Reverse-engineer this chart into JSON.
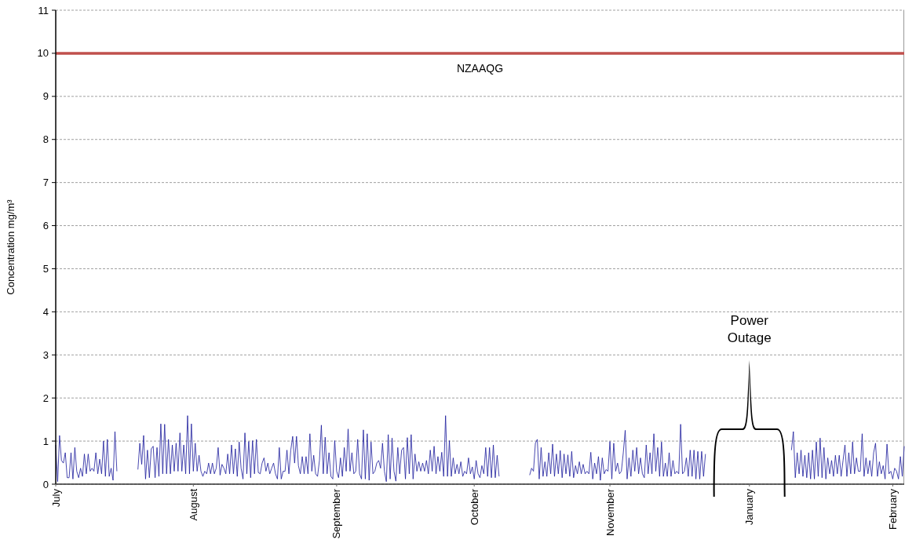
{
  "chart_data": {
    "type": "line",
    "ylabel": "Concentration mg/m³",
    "categories": [
      "July",
      null,
      null,
      null,
      null,
      null,
      null,
      null,
      null,
      null,
      null,
      null,
      null,
      null,
      null,
      null,
      null,
      null,
      null,
      null,
      null,
      null,
      null,
      null,
      null,
      null,
      null,
      null,
      null,
      null,
      null,
      null,
      null,
      null,
      null,
      null,
      null,
      null,
      null,
      null,
      null,
      null,
      null,
      null,
      null,
      null,
      null,
      null,
      null,
      null,
      null,
      null,
      null,
      null,
      null,
      null,
      null,
      null,
      null,
      null,
      null,
      null,
      null,
      null,
      null,
      null,
      null,
      null,
      null,
      null,
      null,
      null,
      "August",
      null,
      null,
      null,
      null,
      null,
      null,
      null,
      null,
      null,
      null,
      null,
      null,
      null,
      null,
      null,
      null,
      null,
      null,
      null,
      null,
      null,
      null,
      null,
      null,
      null,
      null,
      null,
      null,
      null,
      null,
      null,
      null,
      null,
      null,
      null,
      null,
      null,
      null,
      null,
      null,
      null,
      null,
      null,
      null,
      null,
      null,
      null,
      null,
      null,
      null,
      null,
      null,
      null,
      null,
      null,
      null,
      null,
      null,
      null,
      null,
      null,
      null,
      null,
      null,
      null,
      null,
      null,
      null,
      null,
      null,
      null,
      null,
      null,
      null,
      "September",
      null,
      null,
      null,
      null,
      null,
      null,
      null,
      null,
      null,
      null,
      null,
      null,
      null,
      null,
      null,
      null,
      null,
      null,
      null,
      null,
      null,
      null,
      null,
      null,
      null,
      null,
      null,
      null,
      null,
      null,
      null,
      null,
      null,
      null,
      null,
      null,
      null,
      null,
      null,
      null,
      null,
      null,
      null,
      null,
      null,
      null,
      null,
      null,
      null,
      null,
      null,
      null,
      null,
      null,
      null,
      null,
      null,
      null,
      null,
      null,
      null,
      null,
      null,
      null,
      null,
      null,
      null,
      null,
      null,
      null,
      null,
      "October",
      null,
      null,
      null,
      null,
      null,
      null,
      null,
      null,
      null,
      null,
      null,
      null,
      null,
      null,
      null,
      null,
      null,
      null,
      null,
      null,
      null,
      null,
      null,
      null,
      null,
      null,
      null,
      null,
      null,
      null,
      null,
      null,
      null,
      null,
      null,
      null,
      null,
      null,
      null,
      null,
      null,
      null,
      null,
      null,
      null,
      null,
      null,
      null,
      null,
      null,
      null,
      null,
      null,
      null,
      null,
      null,
      null,
      null,
      null,
      null,
      null,
      null,
      null,
      null,
      null,
      null,
      null,
      null,
      null,
      null,
      "November",
      null,
      null,
      null,
      null,
      null,
      null,
      null,
      null,
      null,
      null,
      null,
      null,
      null,
      null,
      null,
      null,
      null,
      null,
      null,
      null,
      null,
      null,
      null,
      null,
      null,
      null,
      null,
      null,
      null,
      null,
      null,
      null,
      null,
      null,
      null,
      null,
      null,
      null,
      null,
      null,
      null,
      null,
      null,
      null,
      null,
      null,
      null,
      null,
      null,
      null,
      null,
      null,
      null,
      null,
      null,
      null,
      null,
      null,
      null,
      null,
      null,
      null,
      null,
      null,
      null,
      null,
      null,
      null,
      null,
      null,
      null,
      null,
      "January",
      null,
      null,
      null,
      null,
      null,
      null,
      null,
      null,
      null,
      null,
      null,
      null,
      null,
      null,
      null,
      null,
      null,
      null,
      null,
      null,
      null,
      null,
      null,
      null,
      null,
      null,
      null,
      null,
      null,
      null,
      null,
      null,
      null,
      null,
      null,
      null,
      null,
      null,
      null,
      null,
      null,
      null,
      null,
      null,
      null,
      null,
      null,
      null,
      null,
      null,
      null,
      null,
      null,
      null,
      null,
      null,
      null,
      null,
      null,
      null,
      null,
      null,
      null,
      null,
      null,
      null,
      null,
      null,
      null,
      null,
      null,
      null,
      null,
      null,
      "February",
      null,
      null,
      null,
      null,
      null,
      null
    ],
    "ylim": [
      0,
      11
    ],
    "yticks": [
      0,
      1,
      2,
      3,
      4,
      5,
      6,
      7,
      8,
      9,
      10,
      11
    ],
    "grid": "y",
    "marker": "none",
    "line_style": "solid",
    "ref_lines": [
      {
        "axis": "y",
        "value": 10,
        "label": "NZAAQG",
        "color": "#c0504d"
      }
    ],
    "annotations": [
      "Power Outage"
    ],
    "series": [
      {
        "color": "#1a1a9c",
        "values": [
          0.91,
          0.06,
          1.13,
          0.55,
          0.49,
          0.73,
          0.15,
          0.15,
          0.73,
          0.12,
          0.85,
          0.3,
          0.15,
          0.37,
          0.18,
          0.7,
          0.24,
          0.7,
          0.3,
          0.37,
          0.3,
          0.73,
          0.24,
          0.58,
          0.24,
          1.0,
          0.18,
          1.04,
          0.18,
          0.37,
          0.09,
          1.22,
          0.3,
          null,
          null,
          null,
          null,
          null,
          null,
          null,
          null,
          null,
          null,
          0.34,
          0.95,
          0.46,
          1.13,
          0.12,
          0.79,
          0.15,
          0.82,
          0.88,
          0.15,
          0.85,
          0.18,
          1.4,
          0.24,
          1.39,
          0.24,
          1.04,
          0.24,
          0.91,
          0.3,
          0.95,
          0.3,
          1.19,
          0.3,
          0.91,
          0.24,
          1.59,
          0.24,
          1.4,
          0.3,
          0.95,
          0.3,
          0.67,
          0.3,
          0.18,
          0.3,
          0.24,
          0.49,
          0.24,
          0.49,
          0.24,
          0.37,
          0.85,
          0.21,
          0.46,
          0.37,
          0.24,
          0.7,
          0.24,
          0.91,
          0.24,
          0.82,
          0.18,
          0.98,
          0.37,
          0.12,
          1.19,
          0.24,
          0.99,
          0.15,
          1.01,
          0.24,
          1.04,
          0.27,
          0.24,
          0.49,
          0.61,
          0.3,
          0.49,
          0.24,
          0.37,
          0.49,
          0.24,
          0.12,
          0.85,
          0.12,
          0.3,
          0.3,
          0.79,
          0.24,
          0.79,
          1.11,
          0.49,
          1.11,
          0.43,
          0.24,
          0.64,
          0.24,
          0.64,
          0.24,
          1.17,
          0.3,
          0.67,
          0.24,
          0.18,
          0.55,
          1.37,
          0.24,
          1.09,
          0.24,
          0.73,
          0.18,
          0.12,
          1.01,
          0.3,
          0.15,
          0.61,
          0.18,
          0.85,
          0.3,
          1.28,
          0.3,
          0.73,
          0.24,
          0.3,
          1.04,
          0.24,
          0.12,
          1.26,
          0.12,
          1.17,
          0.09,
          0.98,
          0.24,
          0.3,
          0.49,
          0.55,
          0.37,
          0.95,
          0.3,
          0.06,
          1.15,
          0.12,
          1.07,
          0.3,
          0.07,
          0.85,
          0.24,
          0.79,
          0.85,
          0.12,
          1.08,
          0.24,
          1.15,
          0.12,
          0.7,
          0.3,
          0.52,
          0.3,
          0.49,
          0.3,
          0.55,
          0.24,
          0.79,
          0.3,
          0.88,
          0.24,
          0.64,
          0.3,
          0.74,
          0.18,
          1.59,
          0.18,
          1.01,
          0.18,
          0.61,
          0.24,
          0.46,
          0.24,
          0.52,
          0.18,
          0.3,
          0.24,
          0.61,
          0.24,
          0.4,
          0.12,
          0.55,
          0.24,
          0.15,
          0.43,
          0.24,
          0.85,
          0.18,
          0.85,
          0.15,
          0.91,
          0.15,
          0.67,
          0.18,
          null,
          null,
          null,
          null,
          null,
          null,
          null,
          null,
          null,
          null,
          null,
          null,
          null,
          null,
          null,
          0.21,
          0.37,
          0.3,
          0.95,
          1.04,
          0.12,
          0.85,
          0.18,
          0.52,
          0.18,
          0.73,
          0.24,
          0.93,
          0.18,
          0.7,
          0.24,
          0.78,
          0.15,
          0.7,
          0.24,
          0.68,
          0.18,
          0.76,
          0.15,
          0.43,
          0.24,
          0.52,
          0.24,
          0.46,
          0.24,
          0.3,
          0.24,
          0.74,
          0.12,
          0.49,
          0.24,
          0.64,
          0.09,
          0.61,
          0.24,
          0.34,
          0.3,
          0.99,
          0.12,
          0.95,
          0.3,
          0.49,
          0.24,
          0.3,
          0.73,
          1.25,
          0.12,
          0.61,
          0.18,
          0.79,
          0.3,
          0.85,
          0.24,
          0.61,
          0.24,
          0.15,
          0.91,
          0.24,
          0.73,
          0.24,
          1.17,
          0.3,
          0.85,
          0.18,
          0.98,
          0.18,
          0.49,
          0.18,
          0.73,
          0.18,
          0.55,
          0.24,
          0.3,
          0.24,
          1.39,
          0.24,
          0.3,
          0.61,
          0.18,
          0.79,
          0.18,
          0.79,
          0.12,
          0.76,
          0.12,
          0.76,
          0.18,
          0.7,
          null,
          null,
          null,
          null,
          null,
          null,
          null,
          null,
          null,
          null,
          null,
          null,
          null,
          null,
          null,
          null,
          null,
          null,
          null,
          null,
          null,
          null,
          null,
          null,
          null,
          null,
          null,
          null,
          null,
          null,
          null,
          null,
          null,
          null,
          null,
          null,
          null,
          null,
          null,
          null,
          null,
          null,
          null,
          null,
          0.79,
          1.22,
          0.15,
          0.73,
          0.24,
          0.79,
          0.18,
          0.67,
          0.15,
          0.73,
          0.12,
          0.79,
          0.12,
          0.98,
          0.18,
          1.07,
          0.15,
          0.85,
          0.12,
          0.61,
          0.24,
          0.55,
          0.18,
          0.67,
          0.24,
          0.67,
          0.18,
          0.55,
          0.91,
          0.18,
          0.73,
          0.24,
          0.98,
          0.24,
          0.61,
          0.3,
          0.3,
          1.17,
          0.18,
          0.61,
          0.24,
          0.55,
          0.18,
          0.73,
          0.95,
          0.18,
          0.52,
          0.24,
          0.43,
          0.12,
          0.93,
          0.24,
          0.3,
          0.12,
          0.37,
          0.3,
          0.12,
          0.64,
          0.18,
          0.88
        ]
      }
    ]
  }
}
